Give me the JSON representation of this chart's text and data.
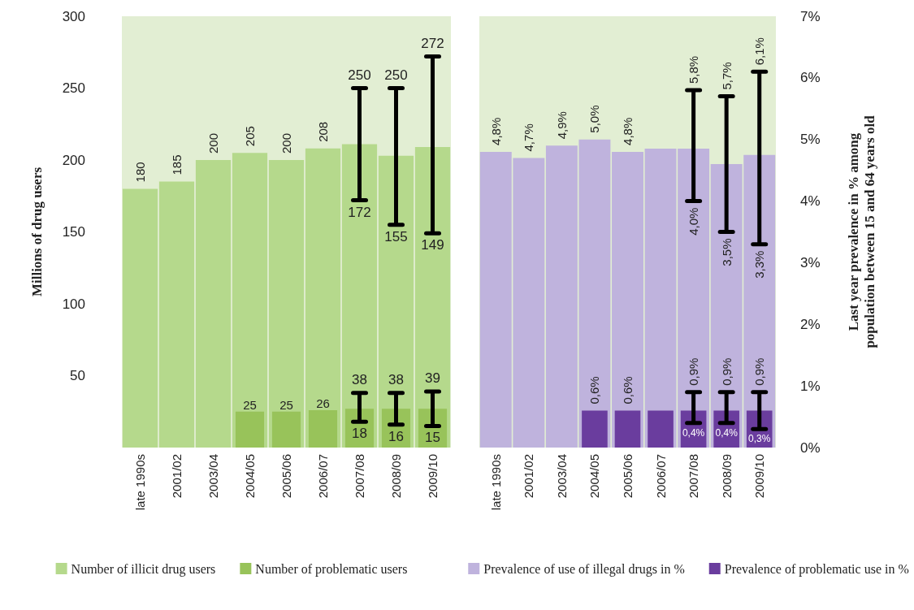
{
  "chart_data": [
    {
      "type": "bar",
      "ylabel": "Millions of drug users",
      "categories": [
        "late 1990s",
        "2001/02",
        "2003/04",
        "2004/05",
        "2005/06",
        "2006/07",
        "2007/08",
        "2008/09",
        "2009/10"
      ],
      "ylim": [
        0,
        300
      ],
      "yticks": [
        50,
        100,
        150,
        200,
        250,
        300
      ],
      "grid": false,
      "legend": "bottom",
      "series": [
        {
          "name": "Number of illicit drug users",
          "color": "#b5d98c",
          "values": [
            180,
            185,
            200,
            205,
            200,
            208,
            211,
            203,
            209
          ],
          "value_labels": [
            "180",
            "185",
            "200",
            "205",
            "200",
            "208",
            null,
            null,
            null
          ],
          "errors": [
            null,
            null,
            null,
            null,
            null,
            null,
            [
              172,
              250
            ],
            [
              155,
              250
            ],
            [
              149,
              272
            ]
          ]
        },
        {
          "name": "Number of problematic users",
          "color": "#98c35a",
          "values": [
            null,
            null,
            null,
            25,
            25,
            26,
            27,
            27,
            27
          ],
          "value_labels": [
            null,
            null,
            null,
            "25",
            "25",
            "26",
            null,
            null,
            null
          ],
          "errors": [
            null,
            null,
            null,
            null,
            null,
            null,
            [
              18,
              38
            ],
            [
              16,
              38
            ],
            [
              15,
              39
            ]
          ]
        }
      ],
      "annotations": [
        {
          "text": "250",
          "x": "2007/08",
          "y": 250
        },
        {
          "text": "172",
          "x": "2007/08",
          "y": 172
        },
        {
          "text": "250",
          "x": "2008/09",
          "y": 250
        },
        {
          "text": "155",
          "x": "2008/09",
          "y": 155
        },
        {
          "text": "272",
          "x": "2009/10",
          "y": 272
        },
        {
          "text": "149",
          "x": "2009/10",
          "y": 149
        },
        {
          "text": "38",
          "x": "2007/08",
          "y": 38
        },
        {
          "text": "18",
          "x": "2007/08",
          "y": 18
        },
        {
          "text": "38",
          "x": "2008/09",
          "y": 38
        },
        {
          "text": "16",
          "x": "2008/09",
          "y": 16
        },
        {
          "text": "39",
          "x": "2009/10",
          "y": 39
        },
        {
          "text": "15",
          "x": "2009/10",
          "y": 15
        }
      ]
    },
    {
      "type": "bar",
      "ylabel": "Last year prevalence in % among\npopulation between 15 and 64 years old",
      "categories": [
        "late 1990s",
        "2001/02",
        "2003/04",
        "2004/05",
        "2005/06",
        "2006/07",
        "2007/08",
        "2008/09",
        "2009/10"
      ],
      "ylim": [
        0,
        7
      ],
      "yticks": [
        {
          "value": 0,
          "label": "0%"
        },
        {
          "value": 1,
          "label": "1%"
        },
        {
          "value": 2,
          "label": "2%"
        },
        {
          "value": 3,
          "label": "3%"
        },
        {
          "value": 4,
          "label": "4%"
        },
        {
          "value": 5,
          "label": "5%"
        },
        {
          "value": 6,
          "label": "6%"
        },
        {
          "value": 7,
          "label": "7%"
        }
      ],
      "grid": false,
      "legend": "bottom",
      "series": [
        {
          "name": "Prevalence of use of illegal drugs in %",
          "color": "#bfb3dd",
          "values": [
            4.8,
            4.7,
            4.9,
            5.0,
            4.8,
            4.85,
            4.85,
            4.6,
            4.75
          ],
          "value_labels": [
            "4,8%",
            "4,7%",
            "4,9%",
            "5,0%",
            "4,8%",
            null,
            null,
            null,
            null
          ],
          "errors": [
            null,
            null,
            null,
            null,
            null,
            null,
            [
              4.0,
              5.8
            ],
            [
              3.5,
              5.7
            ],
            [
              3.3,
              6.1
            ]
          ]
        },
        {
          "name": "Prevalence of problematic use in %",
          "color": "#6a3d9e",
          "values": [
            null,
            null,
            null,
            0.6,
            0.6,
            0.6,
            0.6,
            0.6,
            0.6
          ],
          "value_labels": [
            null,
            null,
            null,
            "0,6%",
            "0,6%",
            null,
            null,
            null,
            null
          ],
          "errors": [
            null,
            null,
            null,
            null,
            null,
            null,
            [
              0.4,
              0.9
            ],
            [
              0.4,
              0.9
            ],
            [
              0.3,
              0.9
            ]
          ]
        }
      ],
      "annotations": [
        {
          "text": "5,8%",
          "x": "2007/08",
          "y": 5.8
        },
        {
          "text": "4,0%",
          "x": "2007/08",
          "y": 4.0
        },
        {
          "text": "5,7%",
          "x": "2008/09",
          "y": 5.7
        },
        {
          "text": "3,5%",
          "x": "2008/09",
          "y": 3.5
        },
        {
          "text": "6,1%",
          "x": "2009/10",
          "y": 6.1
        },
        {
          "text": "3,3%",
          "x": "2009/10",
          "y": 3.3
        },
        {
          "text": "0,9%",
          "x": "2007/08",
          "y": 0.9
        },
        {
          "text": "0,4%",
          "x": "2007/08",
          "y": 0.4
        },
        {
          "text": "0,9%",
          "x": "2008/09",
          "y": 0.9
        },
        {
          "text": "0,4%",
          "x": "2008/09",
          "y": 0.4
        },
        {
          "text": "0,9%",
          "x": "2009/10",
          "y": 0.9
        },
        {
          "text": "0,3%",
          "x": "2009/10",
          "y": 0.3
        }
      ]
    }
  ]
}
